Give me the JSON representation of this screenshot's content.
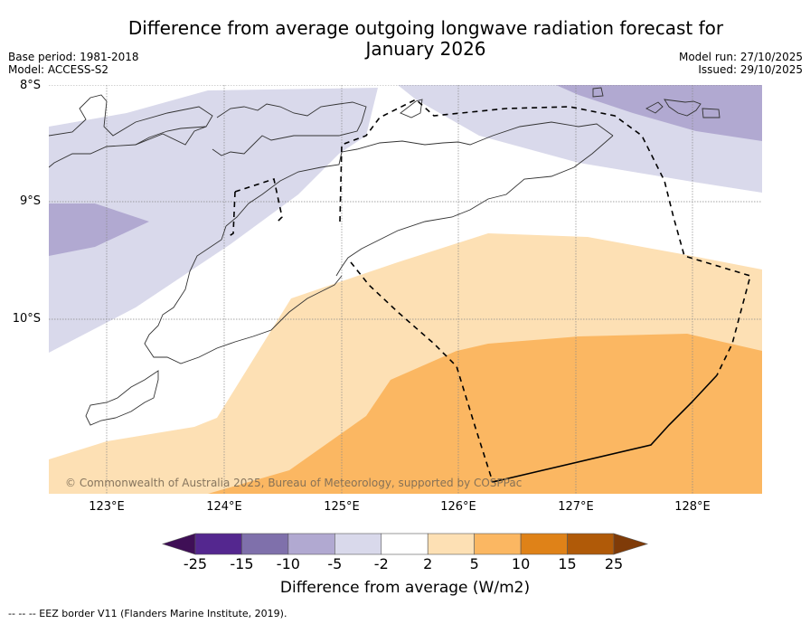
{
  "header": {
    "title_line1": "Difference from average outgoing longwave radiation forecast for",
    "title_line2": "January 2026",
    "base_period": "Base period: 1981-2018",
    "model": "Model: ACCESS-S2",
    "model_run": "Model run: 27/10/2025",
    "issued": "Issued: 29/10/2025"
  },
  "map": {
    "lat_labels": [
      "8°S",
      "9°S",
      "10°S"
    ],
    "lon_labels": [
      "123°E",
      "124°E",
      "125°E",
      "126°E",
      "127°E",
      "128°E"
    ],
    "copyright": "© Commonwealth of Australia 2025, Bureau of Meteorology, supported by COSPPac",
    "extent": {
      "lon_min": 122.5,
      "lon_max": 128.6,
      "lat_min": -11.5,
      "lat_max": -8.0
    }
  },
  "colorbar": {
    "ticks": [
      "-25",
      "-15",
      "-10",
      "-5",
      "-2",
      "2",
      "5",
      "10",
      "15",
      "25"
    ],
    "colors": {
      "below_min": "#3f0f56",
      "bins": [
        "#54278f",
        "#7f70ab",
        "#b1a9d1",
        "#d9d9eb",
        "#ffffff",
        "#fde0b4",
        "#fbb762",
        "#df8218",
        "#b05a08"
      ],
      "above_max": "#7f3b08"
    },
    "label": "Difference from average (W/m2)"
  },
  "footer": {
    "eez_note": "--  --  -- EEZ border V11 (Flanders Marine Institute, 2019)."
  }
}
